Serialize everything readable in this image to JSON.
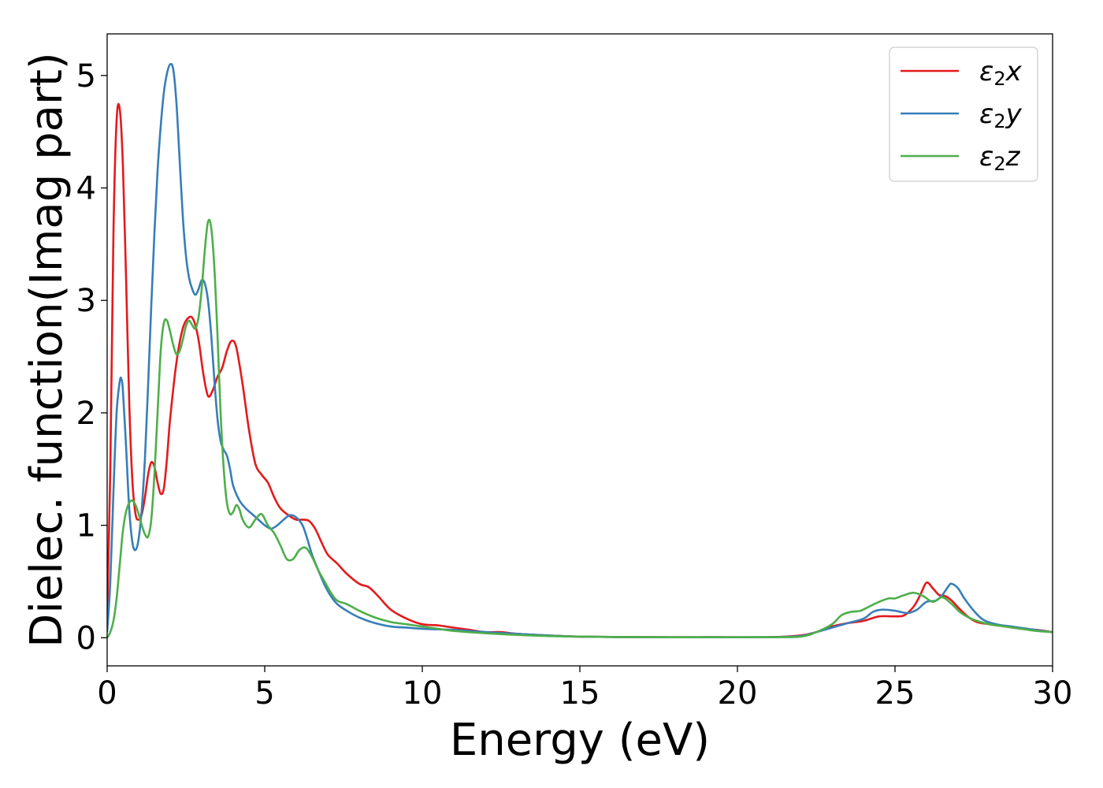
{
  "chart_data": {
    "type": "line",
    "title": "",
    "xlabel": "Energy (eV)",
    "ylabel": "Dielec. function(Imag part)",
    "xlim": [
      0,
      30
    ],
    "ylim": [
      -0.25,
      5.37
    ],
    "xticks": [
      0,
      5,
      10,
      15,
      20,
      25,
      30
    ],
    "yticks": [
      0,
      1,
      2,
      3,
      4,
      5
    ],
    "grid": false,
    "legend_position": "top-right",
    "series": [
      {
        "name": "ε2x",
        "label_base": "ε",
        "label_sub": "2",
        "label_var": "x",
        "color": "#e41a1c",
        "x": [
          0,
          0.1,
          0.2,
          0.3,
          0.4,
          0.5,
          0.6,
          0.7,
          0.8,
          0.9,
          1.0,
          1.1,
          1.2,
          1.3,
          1.4,
          1.5,
          1.6,
          1.7,
          1.8,
          1.9,
          2.0,
          2.2,
          2.4,
          2.6,
          2.75,
          2.9,
          3.05,
          3.2,
          3.35,
          3.5,
          3.65,
          3.8,
          3.95,
          4.1,
          4.3,
          4.5,
          4.7,
          4.9,
          5.1,
          5.3,
          5.5,
          5.8,
          6.0,
          6.2,
          6.4,
          6.6,
          6.8,
          7.0,
          7.3,
          7.6,
          8.0,
          8.3,
          8.6,
          9.0,
          9.5,
          10.0,
          10.5,
          11.0,
          11.5,
          12.0,
          12.5,
          13.0,
          14.0,
          15.0,
          17.0,
          19.0,
          21.0,
          22.0,
          22.5,
          23.0,
          23.5,
          24.0,
          24.5,
          25.0,
          25.3,
          25.6,
          25.8,
          26.0,
          26.2,
          26.4,
          26.6,
          26.8,
          27.0,
          27.3,
          27.6,
          28.0,
          28.5,
          29.0,
          29.5,
          30.0
        ],
        "y": [
          0.15,
          1.5,
          3.6,
          4.6,
          4.7,
          4.2,
          3.2,
          2.1,
          1.4,
          1.1,
          1.05,
          1.1,
          1.25,
          1.45,
          1.56,
          1.52,
          1.38,
          1.28,
          1.33,
          1.6,
          1.95,
          2.45,
          2.75,
          2.85,
          2.82,
          2.65,
          2.35,
          2.15,
          2.2,
          2.32,
          2.4,
          2.55,
          2.64,
          2.58,
          2.25,
          1.85,
          1.55,
          1.45,
          1.38,
          1.25,
          1.15,
          1.08,
          1.05,
          1.05,
          1.04,
          0.97,
          0.85,
          0.74,
          0.66,
          0.57,
          0.48,
          0.45,
          0.37,
          0.25,
          0.17,
          0.12,
          0.11,
          0.09,
          0.07,
          0.05,
          0.05,
          0.035,
          0.02,
          0.01,
          0.005,
          0.005,
          0.005,
          0.02,
          0.05,
          0.1,
          0.13,
          0.15,
          0.19,
          0.19,
          0.2,
          0.28,
          0.38,
          0.49,
          0.44,
          0.38,
          0.37,
          0.33,
          0.27,
          0.19,
          0.14,
          0.12,
          0.1,
          0.08,
          0.07,
          0.05
        ]
      },
      {
        "name": "ε2y",
        "label_base": "ε",
        "label_sub": "2",
        "label_var": "y",
        "color": "#377eb8",
        "x": [
          0,
          0.1,
          0.2,
          0.3,
          0.4,
          0.45,
          0.5,
          0.6,
          0.7,
          0.8,
          0.9,
          1.0,
          1.1,
          1.2,
          1.3,
          1.4,
          1.5,
          1.6,
          1.7,
          1.8,
          1.9,
          2.0,
          2.1,
          2.2,
          2.3,
          2.4,
          2.5,
          2.6,
          2.7,
          2.8,
          2.9,
          3.0,
          3.1,
          3.2,
          3.3,
          3.4,
          3.5,
          3.6,
          3.7,
          3.8,
          3.9,
          4.0,
          4.2,
          4.4,
          4.6,
          4.8,
          5.0,
          5.2,
          5.4,
          5.6,
          5.8,
          6.0,
          6.2,
          6.35,
          6.5,
          6.7,
          6.9,
          7.1,
          7.3,
          7.6,
          8.0,
          8.5,
          9.0,
          9.5,
          10.0,
          10.5,
          11.0,
          12.0,
          13.0,
          14.0,
          15.0,
          17.0,
          19.0,
          21.0,
          22.0,
          22.5,
          23.0,
          23.5,
          24.0,
          24.3,
          24.6,
          25.0,
          25.4,
          25.7,
          26.0,
          26.3,
          26.5,
          26.7,
          26.8,
          27.0,
          27.2,
          27.5,
          27.8,
          28.2,
          28.7,
          29.2,
          29.7,
          30.0
        ],
        "y": [
          0.05,
          0.5,
          1.3,
          2.0,
          2.28,
          2.3,
          2.2,
          1.7,
          1.15,
          0.85,
          0.78,
          0.88,
          1.15,
          1.6,
          2.25,
          2.95,
          3.6,
          4.15,
          4.55,
          4.85,
          5.02,
          5.1,
          5.05,
          4.75,
          4.25,
          3.75,
          3.4,
          3.2,
          3.1,
          3.05,
          3.1,
          3.18,
          3.15,
          3.0,
          2.7,
          2.3,
          1.95,
          1.75,
          1.67,
          1.62,
          1.5,
          1.35,
          1.22,
          1.15,
          1.1,
          1.05,
          1.0,
          0.97,
          1.0,
          1.05,
          1.09,
          1.07,
          1.0,
          0.88,
          0.74,
          0.6,
          0.47,
          0.37,
          0.3,
          0.24,
          0.18,
          0.13,
          0.1,
          0.09,
          0.08,
          0.075,
          0.07,
          0.05,
          0.035,
          0.02,
          0.01,
          0.005,
          0.005,
          0.005,
          0.015,
          0.05,
          0.09,
          0.13,
          0.17,
          0.23,
          0.25,
          0.24,
          0.22,
          0.25,
          0.32,
          0.33,
          0.38,
          0.46,
          0.48,
          0.44,
          0.35,
          0.24,
          0.16,
          0.12,
          0.1,
          0.08,
          0.06,
          0.05
        ]
      },
      {
        "name": "ε2z",
        "label_base": "ε",
        "label_sub": "2",
        "label_var": "z",
        "color": "#4daf4a",
        "x": [
          0,
          0.1,
          0.2,
          0.3,
          0.4,
          0.5,
          0.6,
          0.7,
          0.8,
          0.9,
          1.0,
          1.1,
          1.2,
          1.3,
          1.4,
          1.5,
          1.6,
          1.7,
          1.8,
          1.9,
          2.0,
          2.1,
          2.2,
          2.3,
          2.4,
          2.5,
          2.6,
          2.7,
          2.8,
          2.9,
          3.0,
          3.1,
          3.2,
          3.3,
          3.4,
          3.5,
          3.6,
          3.7,
          3.8,
          3.9,
          4.0,
          4.1,
          4.2,
          4.3,
          4.5,
          4.7,
          4.9,
          5.1,
          5.3,
          5.5,
          5.7,
          5.9,
          6.1,
          6.3,
          6.5,
          6.7,
          6.9,
          7.1,
          7.3,
          7.6,
          8.0,
          8.5,
          9.0,
          9.5,
          10.0,
          10.5,
          11.0,
          12.0,
          13.0,
          14.0,
          15.0,
          17.0,
          19.0,
          21.0,
          22.0,
          22.5,
          23.0,
          23.3,
          23.6,
          23.9,
          24.2,
          24.5,
          24.8,
          25.0,
          25.3,
          25.6,
          25.9,
          26.2,
          26.5,
          26.8,
          27.1,
          27.5,
          28.0,
          28.5,
          29.0,
          29.5,
          30.0
        ],
        "y": [
          0.0,
          0.05,
          0.15,
          0.35,
          0.65,
          0.95,
          1.12,
          1.2,
          1.22,
          1.18,
          1.1,
          1.0,
          0.92,
          0.9,
          1.05,
          1.45,
          2.0,
          2.55,
          2.8,
          2.82,
          2.72,
          2.6,
          2.52,
          2.55,
          2.65,
          2.77,
          2.82,
          2.78,
          2.75,
          2.85,
          3.1,
          3.45,
          3.7,
          3.65,
          3.3,
          2.7,
          2.0,
          1.5,
          1.2,
          1.1,
          1.12,
          1.18,
          1.14,
          1.05,
          0.98,
          1.05,
          1.1,
          1.0,
          0.93,
          0.82,
          0.7,
          0.7,
          0.78,
          0.8,
          0.72,
          0.6,
          0.5,
          0.4,
          0.33,
          0.3,
          0.24,
          0.18,
          0.14,
          0.12,
          0.1,
          0.08,
          0.06,
          0.04,
          0.025,
          0.015,
          0.01,
          0.005,
          0.005,
          0.005,
          0.01,
          0.05,
          0.12,
          0.2,
          0.23,
          0.24,
          0.28,
          0.32,
          0.35,
          0.35,
          0.38,
          0.4,
          0.37,
          0.32,
          0.36,
          0.3,
          0.22,
          0.16,
          0.12,
          0.1,
          0.08,
          0.06,
          0.05
        ]
      }
    ]
  }
}
